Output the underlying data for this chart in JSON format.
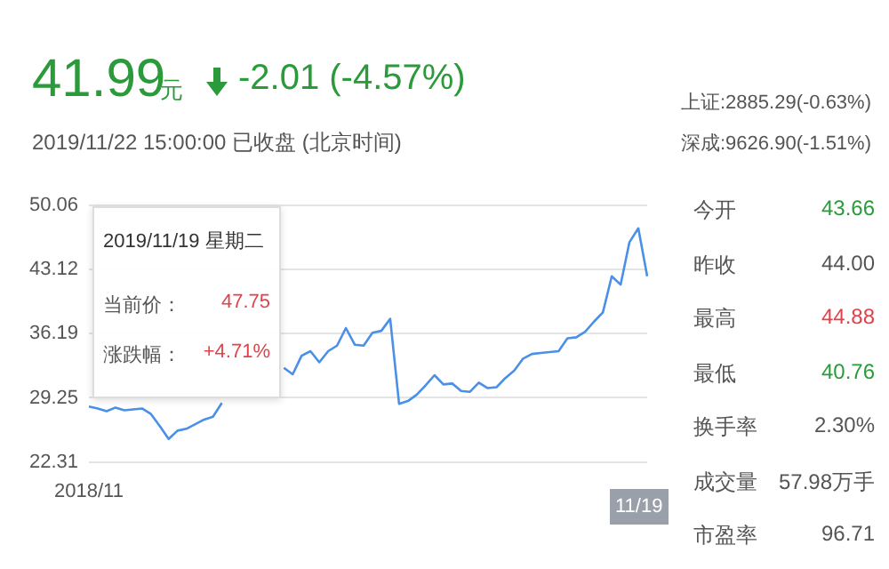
{
  "chart_data": {
    "type": "line",
    "categories": [
      "2018/11",
      null,
      null,
      null,
      null,
      null,
      null,
      null,
      null,
      null,
      null,
      null,
      null,
      null,
      null,
      null,
      null,
      null,
      null,
      null,
      null,
      null,
      null,
      null,
      null,
      null,
      null,
      null,
      null,
      null,
      null,
      null,
      null,
      null,
      null,
      null,
      null,
      null,
      null,
      null,
      null,
      null,
      null,
      null,
      null,
      null,
      null,
      null,
      null,
      null,
      null,
      null,
      null,
      null,
      null,
      null,
      null,
      null,
      null,
      null,
      null,
      null,
      null,
      null
    ],
    "series": [
      {
        "color": "#4a8fe8",
        "values": [
          28.3,
          28.1,
          27.8,
          28.2,
          27.9,
          28.0,
          28.1,
          27.5,
          26.2,
          24.8,
          25.7,
          25.9,
          26.4,
          26.9,
          27.2,
          28.7,
          null,
          null,
          null,
          null,
          null,
          null,
          null,
          null,
          null,
          null,
          null,
          null,
          null,
          null,
          null,
          null,
          null,
          null,
          null,
          null,
          null,
          null,
          null,
          null,
          null,
          null,
          null,
          null,
          null,
          null,
          null,
          null,
          null,
          null,
          null,
          null,
          null,
          null,
          null,
          null,
          null,
          null,
          null,
          null,
          null,
          null,
          null,
          null
        ]
      },
      {
        "color": "#4a8fe8",
        "values": [
          null,
          null,
          null,
          null,
          null,
          null,
          null,
          null,
          null,
          null,
          null,
          null,
          null,
          null,
          null,
          null,
          null,
          null,
          null,
          null,
          null,
          null,
          32.5,
          31.8,
          33.8,
          34.3,
          33.1,
          34.3,
          34.9,
          36.8,
          35.0,
          34.9,
          36.3,
          36.5,
          37.8,
          28.6,
          28.9,
          29.6,
          30.6,
          31.7,
          30.7,
          30.8,
          30.0,
          29.9,
          30.9,
          30.3,
          30.4,
          31.4,
          32.2,
          33.5,
          34.0,
          34.1,
          34.2,
          34.3,
          35.7,
          35.8,
          36.4,
          37.5,
          38.5,
          42.4,
          41.5,
          46.1,
          47.6,
          42.4
        ]
      }
    ],
    "ylim": [
      22.31,
      50.06
    ],
    "yticks": [
      22.31,
      29.25,
      36.19,
      43.12,
      50.06
    ],
    "grid": "y",
    "marker": "none",
    "line_style": "solid",
    "annotations": [
      "41.99",
      "元",
      "-2.01 (-4.57%)",
      "2019/11/22 15:00:00  已收盘  (北京时间)",
      "上证:2885.29(-0.63%)",
      "深成:9626.90(-1.51%)",
      "2019/11/19 星期二",
      "当前价：",
      "47.75",
      "涨跌幅：",
      "+4.71%",
      "11/19",
      "今开",
      "43.66",
      "昨收",
      "44.00",
      "最高",
      "44.88",
      "最低",
      "40.76",
      "换手率",
      "2.30%",
      "成交量",
      "57.98万手",
      "市盈率",
      "96.71"
    ]
  }
}
